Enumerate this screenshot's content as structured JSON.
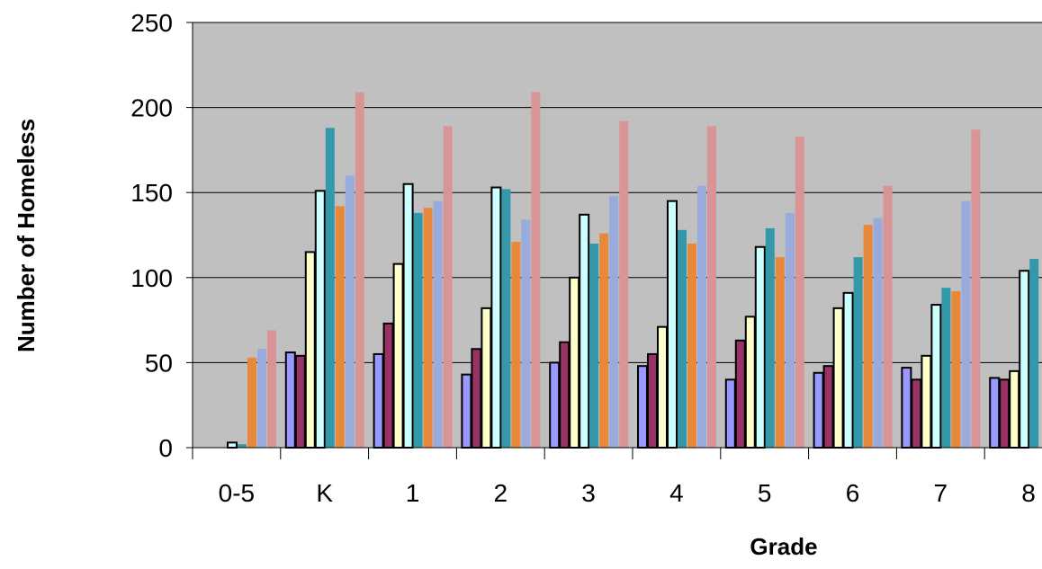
{
  "chart_data": {
    "type": "bar",
    "title": "",
    "xlabel": "Grade",
    "ylabel": "Number of Homeless",
    "ylim": [
      0,
      250
    ],
    "yticks": [
      0,
      50,
      100,
      150,
      200,
      250
    ],
    "grid": true,
    "legend": "none",
    "categories": [
      "0-5",
      "K",
      "1",
      "2",
      "3",
      "4",
      "5",
      "6",
      "7",
      "8"
    ],
    "series": [
      {
        "color": "#9999ff",
        "values": [
          0,
          56,
          55,
          43,
          50,
          48,
          40,
          44,
          47,
          41
        ]
      },
      {
        "color": "#993366",
        "values": [
          0,
          54,
          73,
          58,
          62,
          55,
          63,
          48,
          40,
          40
        ]
      },
      {
        "color": "#ffffcc",
        "values": [
          0,
          115,
          108,
          82,
          100,
          71,
          77,
          82,
          54,
          45
        ]
      },
      {
        "color": "#ccffff",
        "values": [
          3,
          151,
          155,
          153,
          137,
          145,
          118,
          91,
          84,
          104
        ]
      },
      {
        "color": "#3399aa",
        "values": [
          2,
          188,
          138,
          152,
          120,
          128,
          129,
          112,
          94,
          111
        ]
      },
      {
        "color": "#e8883a",
        "values": [
          53,
          142,
          141,
          121,
          126,
          120,
          112,
          131,
          92,
          null
        ]
      },
      {
        "color": "#99aadd",
        "values": [
          58,
          160,
          145,
          134,
          148,
          154,
          138,
          135,
          145,
          null
        ]
      },
      {
        "color": "#d99595",
        "values": [
          69,
          209,
          189,
          209,
          192,
          189,
          183,
          154,
          187,
          null
        ]
      }
    ]
  }
}
